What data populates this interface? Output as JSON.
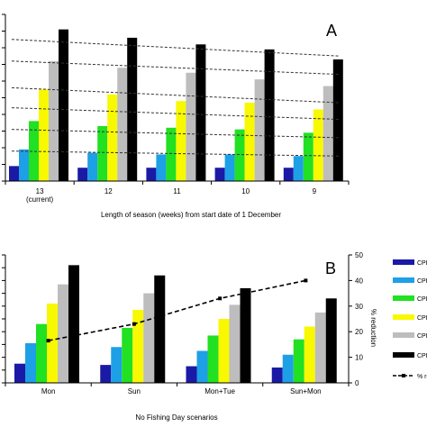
{
  "colors": {
    "series": [
      "#1a1aa6",
      "#1ea0e6",
      "#22e022",
      "#f8f800",
      "#bdbdbd",
      "#000000"
    ],
    "axis": "#000000",
    "dashed": "#333333"
  },
  "chart_data": [
    {
      "id": "A",
      "type": "bar",
      "panel_label": "A",
      "xlabel": "Length of season (weeks) from start date of 1 December",
      "categories": [
        "13\n(current)",
        "12",
        "11",
        "10",
        "9"
      ],
      "ylim": [
        0,
        100
      ],
      "series": [
        {
          "values": [
            9,
            8,
            8,
            8,
            8
          ]
        },
        {
          "values": [
            19,
            17,
            16,
            16,
            15
          ]
        },
        {
          "values": [
            36,
            33,
            32,
            31,
            29
          ]
        },
        {
          "values": [
            55,
            52,
            48,
            47,
            43
          ]
        },
        {
          "values": [
            72,
            68,
            65,
            61,
            57
          ]
        },
        {
          "values": [
            91,
            86,
            82,
            79,
            73
          ]
        }
      ],
      "trend_lines": [
        {
          "values": [
            85,
            75
          ]
        },
        {
          "values": [
            72,
            64
          ]
        },
        {
          "values": [
            56,
            47
          ]
        },
        {
          "values": [
            44,
            37
          ]
        },
        {
          "values": [
            31,
            26
          ]
        },
        {
          "values": [
            18,
            15
          ]
        }
      ],
      "legend": false,
      "grid": false
    },
    {
      "id": "B",
      "type": "bar",
      "panel_label": "B",
      "xlabel": "No Fishing Day scenarios",
      "categories": [
        "Mon",
        "Sun",
        "Mon+Tue",
        "Sun+Mon"
      ],
      "ylim": [
        0,
        100
      ],
      "series": [
        {
          "name": "CPD",
          "values": [
            15,
            14,
            13,
            12
          ]
        },
        {
          "name": "CPD",
          "values": [
            31,
            28,
            25,
            22
          ]
        },
        {
          "name": "CPD",
          "values": [
            46,
            43,
            37,
            34
          ]
        },
        {
          "name": "CPD",
          "values": [
            62,
            57,
            50,
            44
          ]
        },
        {
          "name": "CPD",
          "values": [
            77,
            70,
            61,
            55
          ]
        },
        {
          "name": "CPD",
          "values": [
            92,
            84,
            74,
            66
          ]
        }
      ],
      "secondary_axis": {
        "label": "% reduction",
        "ylim": [
          0,
          50
        ],
        "ticks": [
          "0",
          "10",
          "20",
          "30",
          "40",
          "50"
        ],
        "line_values": [
          16.5,
          23,
          33,
          40
        ],
        "legend_label": "% re"
      },
      "legend": "right"
    }
  ]
}
